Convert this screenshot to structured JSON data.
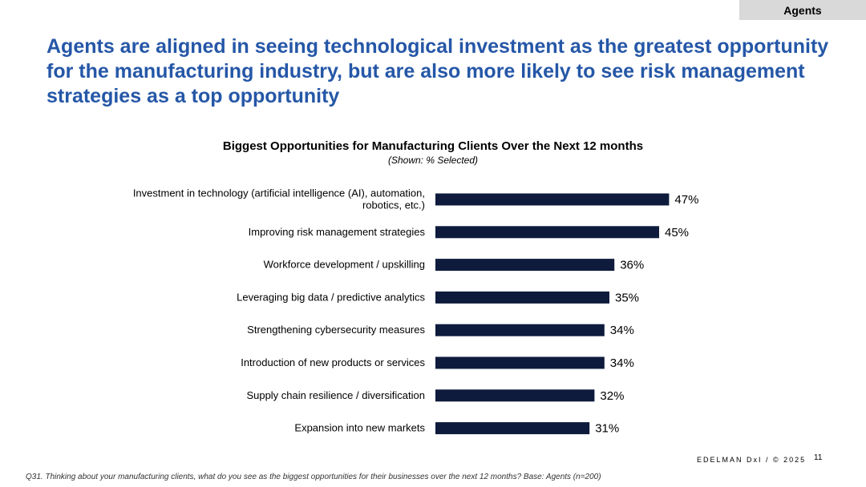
{
  "tag": "Agents",
  "headline": "Agents are aligned in seeing technological investment as the greatest opportunity for the manufacturing industry, but are also more likely to see risk management strategies as a top opportunity",
  "footer": {
    "brand": "EDELMAN DxI / © 2025",
    "page": "11",
    "note": "Q31. Thinking about your manufacturing clients, what do you see as the biggest opportunities for their businesses over the next 12 months? Base: Agents (n=200)"
  },
  "colors": {
    "bar": "#0e1b3c",
    "headline": "#2557a7"
  },
  "chart_data": {
    "type": "bar",
    "orientation": "horizontal",
    "title": "Biggest Opportunities for Manufacturing Clients Over the Next 12 months",
    "subtitle": "(Shown: % Selected)",
    "categories": [
      [
        "Investment in technology (artificial intelligence (AI), automation,",
        "robotics, etc.)"
      ],
      [
        "Improving risk management strategies"
      ],
      [
        "Workforce development / upskilling"
      ],
      [
        "Leveraging big data / predictive analytics"
      ],
      [
        "Strengthening cybersecurity measures"
      ],
      [
        "Introduction of new products or services"
      ],
      [
        "Supply chain resilience / diversification"
      ],
      [
        "Expansion into new markets"
      ]
    ],
    "values": [
      47,
      45,
      36,
      35,
      34,
      34,
      32,
      31
    ],
    "labels": [
      "47%",
      "45%",
      "36%",
      "35%",
      "34%",
      "34%",
      "32%",
      "31%"
    ],
    "xlim": [
      0,
      100
    ],
    "xlabel": "",
    "ylabel": "",
    "grid": false
  }
}
